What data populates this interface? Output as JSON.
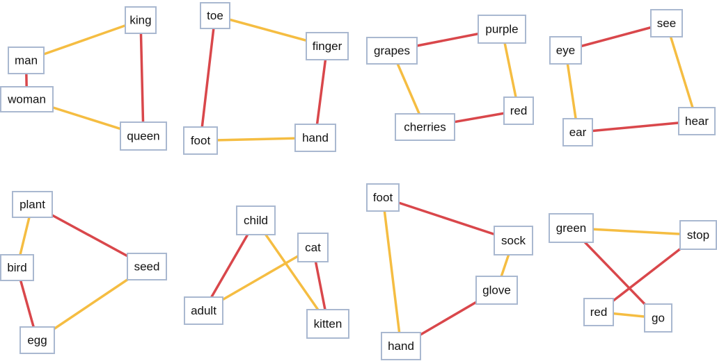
{
  "colors": {
    "red": "#d9474b",
    "yellow": "#f5bd42",
    "border": "#a9b8d0"
  },
  "panels": [
    {
      "nodes": [
        "king",
        "man",
        "woman",
        "queen"
      ],
      "edges": [
        [
          "man",
          "king",
          "yellow"
        ],
        [
          "man",
          "woman",
          "red"
        ],
        [
          "woman",
          "queen",
          "yellow"
        ],
        [
          "king",
          "queen",
          "red"
        ]
      ]
    },
    {
      "nodes": [
        "toe",
        "finger",
        "foot",
        "hand"
      ],
      "edges": [
        [
          "toe",
          "finger",
          "yellow"
        ],
        [
          "toe",
          "foot",
          "red"
        ],
        [
          "finger",
          "hand",
          "red"
        ],
        [
          "foot",
          "hand",
          "yellow"
        ]
      ]
    },
    {
      "nodes": [
        "grapes",
        "purple",
        "cherries",
        "red"
      ],
      "edges": [
        [
          "grapes",
          "purple",
          "red"
        ],
        [
          "grapes",
          "cherries",
          "yellow"
        ],
        [
          "purple",
          "red",
          "yellow"
        ],
        [
          "cherries",
          "red",
          "red"
        ]
      ]
    },
    {
      "nodes": [
        "eye",
        "see",
        "ear",
        "hear"
      ],
      "edges": [
        [
          "eye",
          "see",
          "red"
        ],
        [
          "eye",
          "ear",
          "yellow"
        ],
        [
          "see",
          "hear",
          "yellow"
        ],
        [
          "ear",
          "hear",
          "red"
        ]
      ]
    },
    {
      "nodes": [
        "plant",
        "bird",
        "seed",
        "egg"
      ],
      "edges": [
        [
          "plant",
          "bird",
          "yellow"
        ],
        [
          "plant",
          "seed",
          "red"
        ],
        [
          "bird",
          "egg",
          "red"
        ],
        [
          "egg",
          "seed",
          "yellow"
        ]
      ]
    },
    {
      "nodes": [
        "child",
        "cat",
        "adult",
        "kitten"
      ],
      "edges": [
        [
          "child",
          "adult",
          "red"
        ],
        [
          "child",
          "kitten",
          "yellow"
        ],
        [
          "cat",
          "adult",
          "yellow"
        ],
        [
          "cat",
          "kitten",
          "red"
        ]
      ]
    },
    {
      "nodes": [
        "foot",
        "sock",
        "glove",
        "hand"
      ],
      "edges": [
        [
          "foot",
          "sock",
          "red"
        ],
        [
          "foot",
          "hand",
          "yellow"
        ],
        [
          "sock",
          "glove",
          "yellow"
        ],
        [
          "glove",
          "hand",
          "red"
        ]
      ]
    },
    {
      "nodes": [
        "green",
        "stop",
        "red",
        "go"
      ],
      "edges": [
        [
          "green",
          "stop",
          "yellow"
        ],
        [
          "green",
          "go",
          "red"
        ],
        [
          "stop",
          "red",
          "red"
        ],
        [
          "red",
          "go",
          "yellow"
        ]
      ]
    }
  ]
}
